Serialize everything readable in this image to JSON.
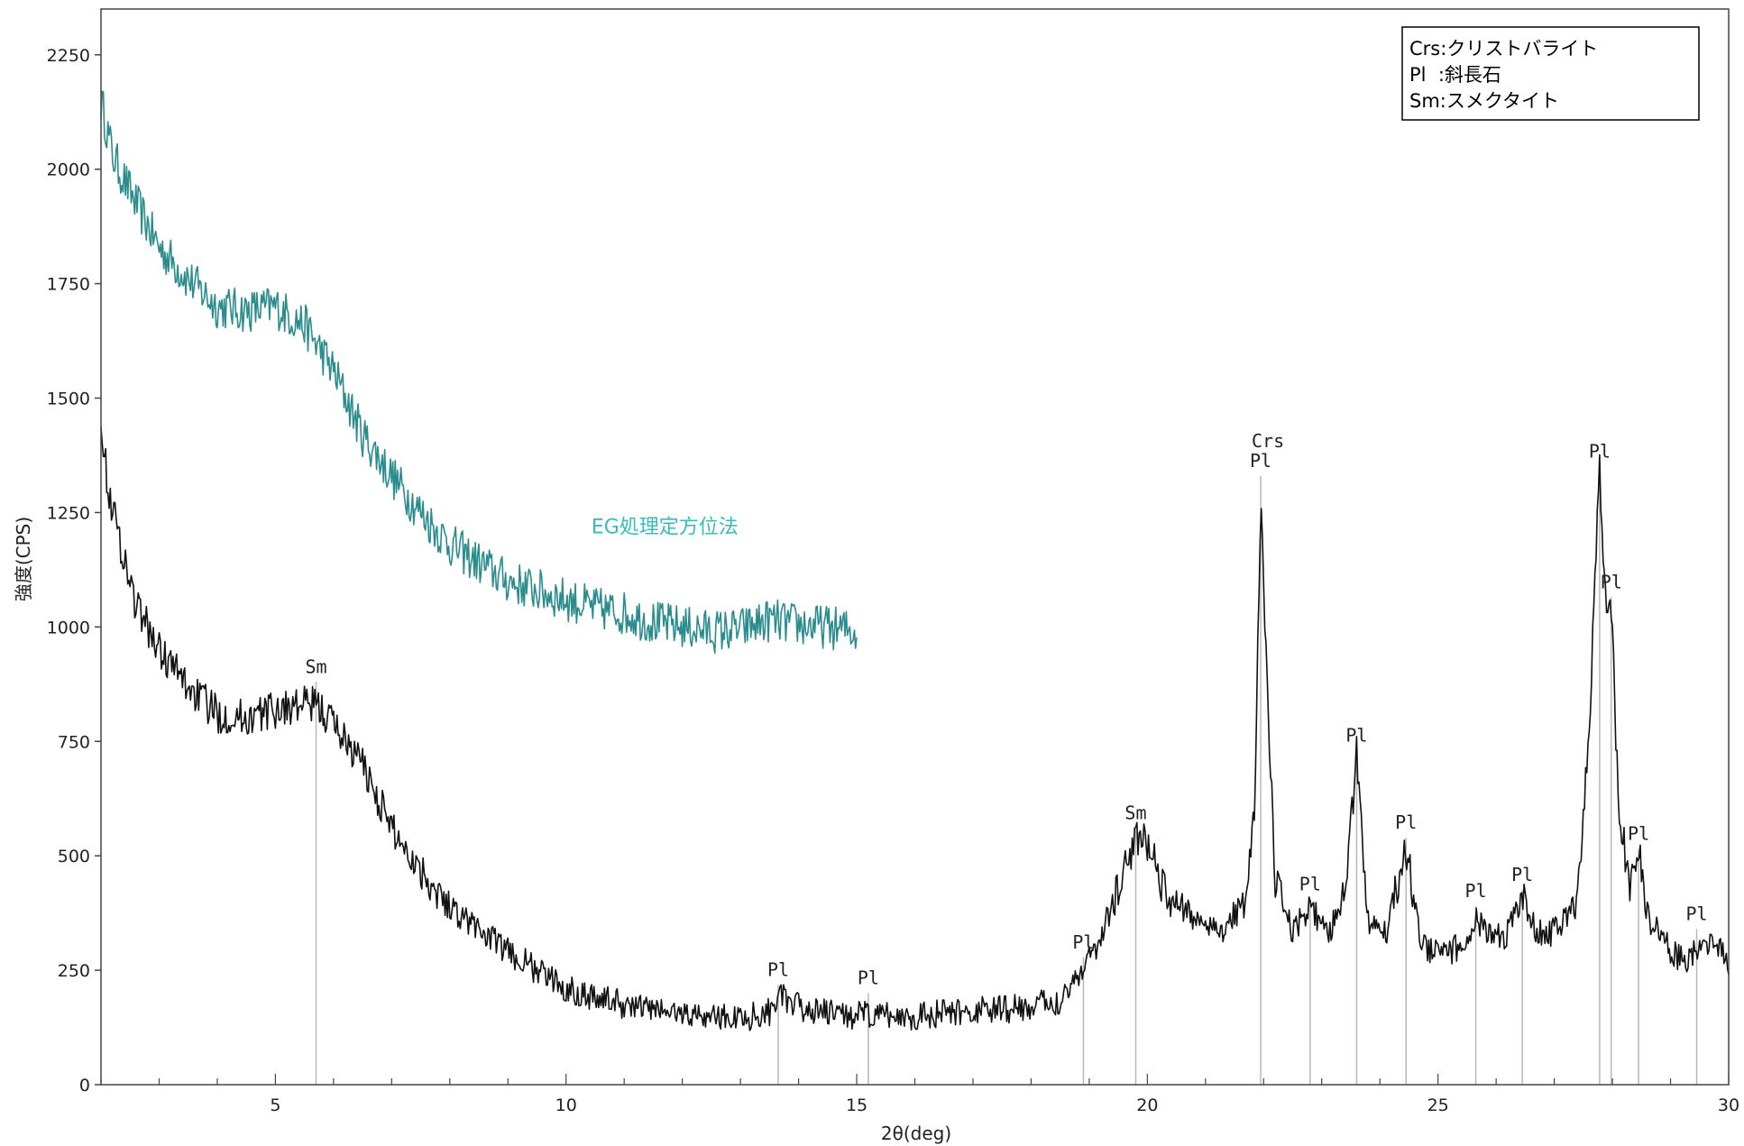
{
  "chart_data": {
    "type": "line",
    "xlabel": "2θ(deg)",
    "ylabel": "強度(CPS)",
    "xlim": [
      2,
      30
    ],
    "ylim": [
      0,
      2350
    ],
    "x_ticks": [
      5,
      10,
      15,
      20,
      25,
      30
    ],
    "y_ticks": [
      0,
      250,
      500,
      750,
      1000,
      1250,
      1500,
      1750,
      2000,
      2250
    ],
    "grid": false,
    "legend": {
      "position": "top-right",
      "entries": [
        "Crs:クリストバライト",
        "Pl  :斜長石",
        "Sm:スメクタイト"
      ]
    },
    "series": [
      {
        "label": "EG処理定方位法",
        "color": "#2a8c8c",
        "label_at": [
          11.7,
          1205
        ],
        "noise": 40,
        "x": [
          2.0,
          2.2,
          2.5,
          3.0,
          3.5,
          4.0,
          4.5,
          5.0,
          5.5,
          6.0,
          6.5,
          7.0,
          7.5,
          8.0,
          8.5,
          9.0,
          9.5,
          10.0,
          10.5,
          11.0,
          11.5,
          12.0,
          12.5,
          13.0,
          13.5,
          14.0,
          14.5,
          15.0
        ],
        "y": [
          2150,
          2030,
          1950,
          1830,
          1760,
          1700,
          1690,
          1700,
          1660,
          1560,
          1420,
          1330,
          1250,
          1180,
          1140,
          1100,
          1080,
          1060,
          1040,
          1030,
          1010,
          1000,
          990,
          995,
          1015,
          1005,
          1000,
          990
        ]
      },
      {
        "color": "#111111",
        "noise": 35,
        "x": [
          2.0,
          2.1,
          2.3,
          2.6,
          3.0,
          3.5,
          4.0,
          4.5,
          5.0,
          5.5,
          5.7,
          6.0,
          6.5,
          7.0,
          7.5,
          8.0,
          8.5,
          9.0,
          9.5,
          10.0,
          11.0,
          12.0,
          13.0,
          13.5,
          13.65,
          13.8,
          14.5,
          15.2,
          16.0,
          17.0,
          18.0,
          18.5,
          18.9,
          19.2,
          19.5,
          19.8,
          20.0,
          20.3,
          20.8,
          21.3,
          21.7,
          21.85,
          21.95,
          22.05,
          22.2,
          22.5,
          22.8,
          23.1,
          23.4,
          23.6,
          23.8,
          24.1,
          24.45,
          24.7,
          25.0,
          25.4,
          25.65,
          25.9,
          26.2,
          26.45,
          26.7,
          27.0,
          27.4,
          27.6,
          27.78,
          27.9,
          27.98,
          28.1,
          28.3,
          28.45,
          28.6,
          28.9,
          29.2,
          29.5,
          29.8,
          30.0
        ],
        "y": [
          1470,
          1320,
          1200,
          1050,
          950,
          870,
          810,
          800,
          820,
          830,
          830,
          790,
          700,
          560,
          470,
          390,
          340,
          290,
          250,
          210,
          175,
          155,
          145,
          160,
          205,
          175,
          155,
          150,
          150,
          160,
          170,
          185,
          260,
          320,
          430,
          540,
          530,
          420,
          365,
          340,
          400,
          600,
          1300,
          900,
          440,
          330,
          390,
          320,
          420,
          720,
          360,
          330,
          520,
          310,
          285,
          300,
          370,
          320,
          330,
          410,
          330,
          335,
          400,
          780,
          1340,
          1000,
          1060,
          620,
          420,
          510,
          370,
          310,
          270,
          300,
          300,
          270
        ]
      }
    ],
    "peak_markers": [
      {
        "x": 5.7,
        "y": 880,
        "label": "Sm"
      },
      {
        "x": 13.65,
        "y": 218,
        "label": "Pl"
      },
      {
        "x": 15.2,
        "y": 200,
        "label": "Pl"
      },
      {
        "x": 18.9,
        "y": 278,
        "label": "Pl"
      },
      {
        "x": 19.8,
        "y": 560,
        "label": "Sm"
      },
      {
        "x": 21.95,
        "y": 1330,
        "label": "Pl",
        "label2": "Crs"
      },
      {
        "x": 22.8,
        "y": 405,
        "label": "Pl"
      },
      {
        "x": 23.6,
        "y": 730,
        "label": "Pl"
      },
      {
        "x": 24.45,
        "y": 540,
        "label": "Pl"
      },
      {
        "x": 25.65,
        "y": 390,
        "label": "Pl"
      },
      {
        "x": 26.45,
        "y": 425,
        "label": "Pl"
      },
      {
        "x": 27.78,
        "y": 1350,
        "label": "Pl"
      },
      {
        "x": 27.98,
        "y": 1065,
        "label": "Pl"
      },
      {
        "x": 28.45,
        "y": 515,
        "label": "Pl"
      },
      {
        "x": 29.45,
        "y": 340,
        "label": "Pl"
      }
    ]
  }
}
